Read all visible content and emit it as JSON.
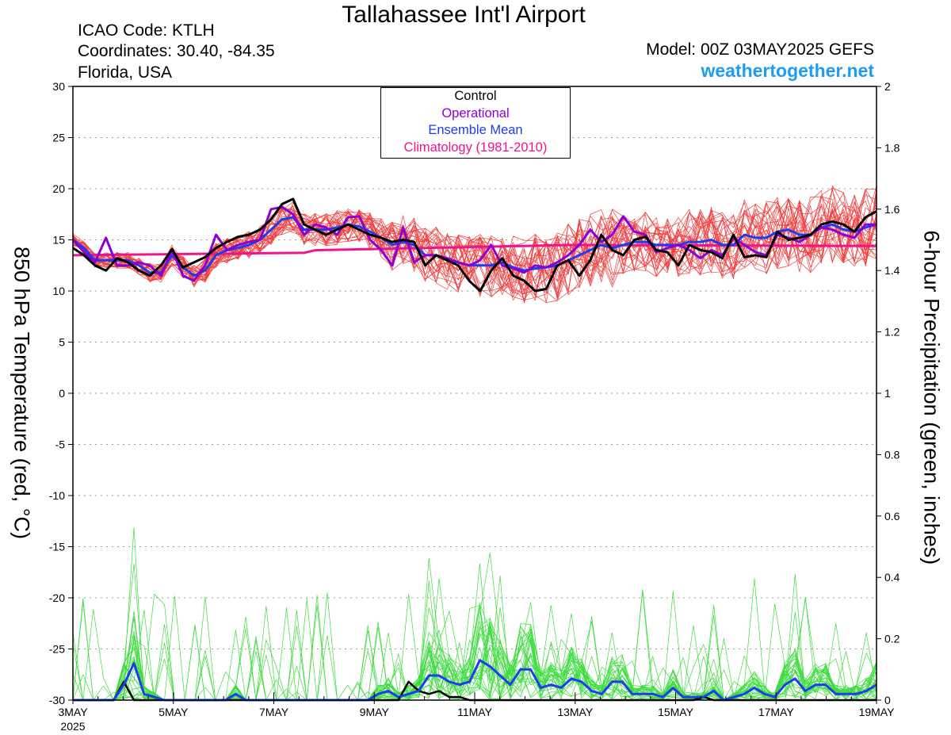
{
  "header": {
    "title": "Tallahassee Int'l Airport",
    "icao": "ICAO Code: KTLH",
    "coords": "Coordinates: 30.40, -84.35",
    "region": "Florida, USA",
    "model": "Model: 00Z 03MAY2025 GEFS",
    "site": "weathertogether.net"
  },
  "legend": {
    "control": "Control",
    "operational": "Operational",
    "mean": "Ensemble Mean",
    "clim": "Climatology (1981-2010)"
  },
  "colors": {
    "control": "#000000",
    "operational": "#8b00d4",
    "mean": "#1e3cf0",
    "clim": "#f0148c",
    "members_temp": "#f03c3c",
    "members_precip": "#3cdc3c",
    "site": "#1e9cf0"
  },
  "chart_data": {
    "type": "line",
    "ylabel": "850 hPa Temperature (red, °C)",
    "y2label": "6-hour Precipitation (green, inches)",
    "xlabel": "",
    "ylim": [
      -30,
      30
    ],
    "y2lim": [
      0,
      2
    ],
    "yticks": [
      "30",
      "25",
      "20",
      "15",
      "10",
      "5",
      "0",
      "-5",
      "-10",
      "-15",
      "-20",
      "-25",
      "-30"
    ],
    "y2ticks": [
      "2",
      "1.8",
      "1.6",
      "1.4",
      "1.2",
      "1",
      "0.8",
      "0.6",
      "0.4",
      "0.2",
      "0"
    ],
    "xticks": [
      "3MAY",
      "5MAY",
      "7MAY",
      "9MAY",
      "11MAY",
      "13MAY",
      "15MAY",
      "17MAY",
      "19MAY"
    ],
    "xtick_sub": "2025",
    "x_days": [
      0,
      16
    ],
    "grid": true,
    "legend_position": "top-center",
    "temperature": {
      "control": [
        14.2,
        13.5,
        12.5,
        12.0,
        13.2,
        12.8,
        12.0,
        11.5,
        12.5,
        14.1,
        12.3,
        12.8,
        13.3,
        14.2,
        14.8,
        15.3,
        15.5,
        16.0,
        17.0,
        18.5,
        19.0,
        16.5,
        16.0,
        15.5,
        16.0,
        16.5,
        16.0,
        15.5,
        15.2,
        14.8,
        15.0,
        14.8,
        12.5,
        13.5,
        13.0,
        12.5,
        11.0,
        10.0,
        12.0,
        13.2,
        11.5,
        11.0,
        10.0,
        10.2,
        12.5,
        13.0,
        11.5,
        13.0,
        15.5,
        14.0,
        13.5,
        15.0,
        15.3,
        14.0,
        13.8,
        12.5,
        14.5,
        14.0,
        13.8,
        13.2,
        15.5,
        13.3,
        13.5,
        13.3,
        15.8,
        15.0,
        15.2,
        15.5,
        16.5,
        16.8,
        16.5,
        15.8,
        17.2,
        17.8
      ],
      "operational": [
        15.0,
        13.8,
        12.8,
        15.2,
        12.5,
        12.5,
        12.8,
        12.5,
        11.5,
        14.0,
        11.5,
        11.0,
        12.5,
        15.5,
        14.0,
        14.5,
        14.8,
        15.0,
        18.0,
        18.2,
        17.5,
        15.5,
        16.5,
        16.2,
        15.5,
        17.2,
        17.3,
        15.0,
        14.0,
        12.5,
        16.2,
        12.8,
        13.5,
        13.5,
        13.2,
        12.8,
        12.5,
        13.0,
        14.5,
        12.5,
        12.2,
        11.8,
        12.5,
        12.3,
        12.8,
        13.5,
        14.5,
        16.0,
        14.8,
        15.5,
        17.3,
        15.8,
        15.5,
        13.8,
        14.2,
        14.5,
        14.0,
        13.2,
        14.0,
        13.5,
        15.2,
        14.5,
        13.8,
        13.5,
        15.5,
        15.2,
        14.8,
        15.5,
        16.2,
        16.0,
        15.5,
        15.2,
        16.5,
        16.5
      ],
      "mean": [
        15.0,
        14.2,
        13.0,
        13.0,
        13.0,
        13.0,
        12.5,
        11.8,
        11.8,
        13.5,
        12.3,
        11.5,
        12.0,
        13.5,
        14.0,
        14.2,
        14.5,
        15.0,
        16.0,
        17.0,
        17.2,
        16.0,
        16.0,
        16.0,
        16.2,
        16.5,
        16.3,
        15.8,
        15.2,
        14.5,
        14.8,
        14.5,
        13.5,
        13.5,
        13.0,
        12.8,
        12.5,
        12.5,
        12.5,
        12.8,
        12.3,
        12.0,
        12.2,
        12.3,
        12.5,
        13.0,
        13.5,
        14.0,
        14.5,
        14.2,
        14.5,
        14.8,
        14.8,
        14.5,
        14.5,
        14.5,
        14.8,
        14.8,
        15.0,
        14.5,
        14.5,
        15.5,
        15.2,
        15.2,
        15.8,
        16.0,
        15.5,
        15.5,
        16.2,
        16.5,
        16.0,
        15.8,
        16.2,
        16.5
      ],
      "climatology_start": 13.5,
      "climatology_mid": 14.5,
      "climatology_end": 14.4
    },
    "precipitation": {
      "control": [
        0,
        0,
        0,
        0,
        0,
        0.06,
        0,
        0,
        0,
        0,
        0,
        0,
        0,
        0,
        0,
        0,
        0,
        0,
        0,
        0,
        0,
        0,
        0,
        0,
        0,
        0,
        0,
        0,
        0,
        0,
        0,
        0,
        0,
        0.06,
        0.03,
        0.02,
        0.03,
        0.01,
        0.01,
        0,
        0,
        0,
        0,
        0,
        0,
        0,
        0,
        0,
        0,
        0,
        0,
        0,
        0,
        0,
        0,
        0,
        0,
        0,
        0,
        0,
        0,
        0,
        0.01,
        0,
        0,
        0,
        0,
        0,
        0,
        0,
        0,
        0,
        0,
        0,
        0,
        0,
        0,
        0,
        0,
        0
      ],
      "mean": [
        0,
        0,
        0,
        0,
        0,
        0.05,
        0.12,
        0.02,
        0.01,
        0,
        0,
        0,
        0,
        0,
        0,
        0,
        0.02,
        0,
        0,
        0,
        0,
        0,
        0,
        0,
        0,
        0,
        0,
        0,
        0,
        0,
        0.02,
        0.03,
        0.01,
        0.02,
        0.03,
        0.08,
        0.08,
        0.06,
        0.05,
        0.06,
        0.13,
        0.11,
        0.08,
        0.05,
        0.1,
        0.1,
        0.04,
        0.05,
        0.04,
        0.07,
        0.06,
        0.03,
        0.02,
        0.06,
        0.06,
        0.02,
        0.02,
        0.02,
        0.01,
        0.04,
        0.01,
        0.01,
        0.01,
        0.03,
        0,
        0.01,
        0.02,
        0.04,
        0.02,
        0.01,
        0.05,
        0.07,
        0.03,
        0.05,
        0.05,
        0.02,
        0.02,
        0.02,
        0.03,
        0.05
      ]
    }
  }
}
